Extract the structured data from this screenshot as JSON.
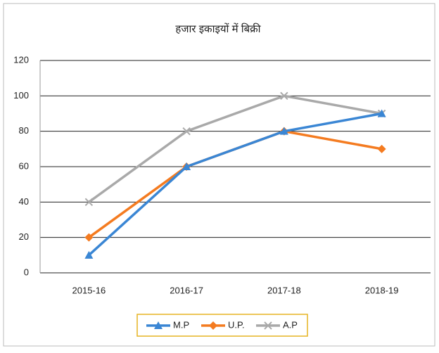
{
  "chart_data": {
    "type": "line",
    "title": "हजार इकाइयों में बिक्री",
    "categories": [
      "2015-16",
      "2016-17",
      "2017-18",
      "2018-19"
    ],
    "series": [
      {
        "name": "M.P",
        "color": "#3a86d4",
        "marker": "triangle",
        "values": [
          10,
          60,
          80,
          90
        ]
      },
      {
        "name": "U.P.",
        "color": "#f47b20",
        "marker": "diamond",
        "values": [
          20,
          60,
          80,
          70
        ]
      },
      {
        "name": "A.P",
        "color": "#a9a9a9",
        "marker": "x",
        "values": [
          40,
          80,
          100,
          90
        ]
      }
    ],
    "ylim": [
      0,
      120
    ],
    "yticks": [
      0,
      20,
      40,
      60,
      80,
      100,
      120
    ],
    "grid": true,
    "legend": "bottom"
  }
}
